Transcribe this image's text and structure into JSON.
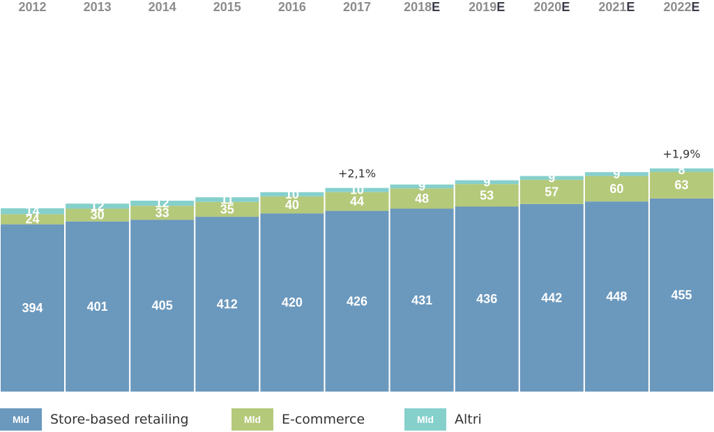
{
  "colors": {
    "store": "#6b98bd",
    "ecom": "#b4c97a",
    "altri": "#86d0cc"
  },
  "chart_data": {
    "type": "bar",
    "stacked": true,
    "categories": [
      {
        "year": "2012",
        "est": ""
      },
      {
        "year": "2013",
        "est": ""
      },
      {
        "year": "2014",
        "est": ""
      },
      {
        "year": "2015",
        "est": ""
      },
      {
        "year": "2016",
        "est": ""
      },
      {
        "year": "2017",
        "est": ""
      },
      {
        "year": "2018",
        "est": "E"
      },
      {
        "year": "2019",
        "est": "E"
      },
      {
        "year": "2020",
        "est": "E"
      },
      {
        "year": "2021",
        "est": "E"
      },
      {
        "year": "2022",
        "est": "E"
      }
    ],
    "series": [
      {
        "key": "store",
        "name": "Store-based retailing",
        "values": [
          394,
          401,
          405,
          412,
          420,
          426,
          431,
          436,
          442,
          448,
          455
        ]
      },
      {
        "key": "ecom",
        "name": "E-commerce",
        "values": [
          24,
          30,
          33,
          35,
          40,
          44,
          48,
          53,
          57,
          60,
          63
        ]
      },
      {
        "key": "altri",
        "name": "Altri",
        "values": [
          14,
          12,
          12,
          11,
          10,
          10,
          9,
          9,
          9,
          9,
          8
        ]
      }
    ],
    "annotations": [
      {
        "category_index": 5,
        "text": "+2,1%"
      },
      {
        "category_index": 10,
        "text": "+1,9%"
      }
    ]
  },
  "legend": [
    {
      "key": "store",
      "unit": "Mld",
      "label": "Store-based retailing"
    },
    {
      "key": "ecom",
      "unit": "Mld",
      "label": "E-commerce"
    },
    {
      "key": "altri",
      "unit": "Mld",
      "label": "Altri"
    }
  ]
}
